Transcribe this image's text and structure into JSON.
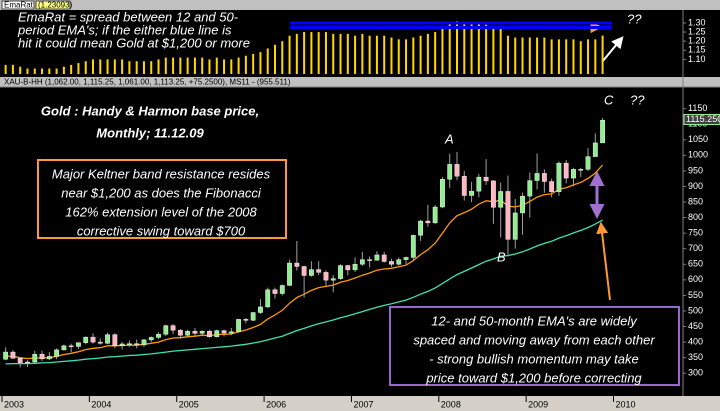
{
  "chart_data": [
    {
      "type": "bar",
      "title": "EmaRat",
      "subtitle": "(1.23093)",
      "color": "#ffd700",
      "values": [
        1.07,
        1.07,
        1.06,
        1.05,
        1.05,
        1.05,
        1.05,
        1.05,
        1.06,
        1.07,
        1.08,
        1.09,
        1.1,
        1.1,
        1.1,
        1.1,
        1.1,
        1.09,
        1.09,
        1.09,
        1.09,
        1.1,
        1.11,
        1.11,
        1.11,
        1.11,
        1.11,
        1.11,
        1.1,
        1.11,
        1.1,
        1.1,
        1.11,
        1.12,
        1.13,
        1.14,
        1.16,
        1.18,
        1.2,
        1.23,
        1.24,
        1.25,
        1.25,
        1.25,
        1.25,
        1.24,
        1.24,
        1.24,
        1.23,
        1.24,
        1.23,
        1.23,
        1.23,
        1.22,
        1.21,
        1.21,
        1.22,
        1.23,
        1.24,
        1.25,
        1.28,
        1.3,
        1.31,
        1.3,
        1.3,
        1.3,
        1.29,
        1.28,
        1.27,
        1.23,
        1.22,
        1.22,
        1.22,
        1.22,
        1.22,
        1.21,
        1.21,
        1.21,
        1.21,
        1.2,
        1.21,
        1.21,
        1.23093,
        null,
        null
      ],
      "ylim": [
        1.02,
        1.36
      ],
      "yticks": [
        {
          "value": 1.1,
          "label": "1.10"
        },
        {
          "value": 1.15,
          "label": "1.15"
        },
        {
          "value": 1.2,
          "label": "1.20"
        },
        {
          "value": 1.25,
          "label": "1.25"
        },
        {
          "value": 1.3,
          "label": "1.30"
        }
      ],
      "reference_lines": [
        {
          "value": 1.3,
          "color": "#0000ff"
        },
        {
          "value": 1.275,
          "color": "#0000ff"
        }
      ],
      "annotations": [
        {
          "lines": [
            "EmaRat = spread between 12 and 50-",
            "period EMA's; if the either blue line is",
            "hit it could mean Gold at $1,200 or more"
          ]
        },
        {
          "lines": [
            "??"
          ]
        }
      ]
    },
    {
      "type": "candlestick",
      "title": "XAU-B-HH (1,062.00, 1,115.25, 1,061.00, 1,113.25, +75.2500), MS11 - (955.511)",
      "categories": [
        "2003",
        null,
        null,
        null,
        null,
        null,
        null,
        null,
        null,
        null,
        null,
        null,
        "2004",
        null,
        null,
        null,
        null,
        null,
        null,
        null,
        null,
        null,
        null,
        null,
        "2005",
        null,
        null,
        null,
        null,
        null,
        null,
        null,
        null,
        null,
        null,
        null,
        "2006",
        null,
        null,
        null,
        null,
        null,
        null,
        null,
        null,
        null,
        null,
        null,
        "2007",
        null,
        null,
        null,
        null,
        null,
        null,
        null,
        null,
        null,
        null,
        null,
        "2008",
        null,
        null,
        null,
        null,
        null,
        null,
        null,
        null,
        null,
        null,
        null,
        "2009",
        null,
        null,
        null,
        null,
        null,
        null,
        null,
        null,
        null,
        null,
        null,
        "2010"
      ],
      "open": [
        345,
        368,
        348,
        334,
        336,
        361,
        346,
        354,
        375,
        388,
        386,
        398,
        416,
        400,
        396,
        424,
        388,
        394,
        395,
        391,
        407,
        415,
        425,
        453,
        438,
        422,
        435,
        428,
        435,
        417,
        437,
        429,
        433,
        473,
        470,
        495,
        513,
        568,
        556,
        582,
        654,
        643,
        614,
        633,
        624,
        599,
        604,
        646,
        632,
        650,
        665,
        663,
        680,
        659,
        650,
        665,
        672,
        743,
        789,
        783,
        834,
        923,
        971,
        933,
        871,
        885,
        930,
        918,
        833,
        884,
        730,
        815,
        869,
        919,
        942,
        916,
        883,
        975,
        927,
        955,
        955,
        996,
        1040,
        null,
        null
      ],
      "high": [
        383,
        374,
        352,
        342,
        372,
        372,
        368,
        380,
        392,
        395,
        400,
        418,
        428,
        412,
        430,
        428,
        400,
        405,
        408,
        410,
        418,
        432,
        456,
        458,
        442,
        440,
        445,
        438,
        440,
        440,
        440,
        445,
        475,
        478,
        497,
        538,
        575,
        575,
        585,
        665,
        725,
        645,
        660,
        660,
        630,
        615,
        650,
        648,
        672,
        690,
        675,
        692,
        690,
        668,
        672,
        675,
        745,
        792,
        841,
        840,
        930,
        1005,
        1011,
        950,
        915,
        940,
        988,
        920,
        912,
        935,
        860,
        880,
        945,
        1006,
        955,
        925,
        980,
        985,
        960,
        960,
        1023,
        1071,
        1120,
        null,
        null
      ],
      "low": [
        342,
        346,
        319,
        320,
        334,
        339,
        342,
        345,
        372,
        368,
        378,
        393,
        395,
        392,
        393,
        380,
        376,
        385,
        380,
        385,
        400,
        410,
        420,
        426,
        411,
        415,
        420,
        422,
        414,
        415,
        418,
        422,
        430,
        460,
        467,
        490,
        510,
        540,
        550,
        580,
        630,
        543,
        610,
        615,
        580,
        560,
        600,
        615,
        625,
        645,
        640,
        662,
        655,
        642,
        646,
        650,
        660,
        725,
        770,
        780,
        830,
        895,
        920,
        855,
        850,
        865,
        905,
        780,
        736,
        681,
        700,
        745,
        800,
        890,
        880,
        865,
        870,
        910,
        900,
        930,
        950,
        998,
        1040,
        null,
        null
      ],
      "close": [
        368,
        348,
        334,
        336,
        361,
        346,
        354,
        375,
        388,
        386,
        398,
        416,
        400,
        396,
        424,
        388,
        394,
        395,
        391,
        407,
        415,
        425,
        453,
        438,
        422,
        435,
        428,
        435,
        417,
        437,
        429,
        433,
        473,
        470,
        495,
        513,
        568,
        556,
        582,
        654,
        643,
        614,
        633,
        624,
        599,
        604,
        646,
        632,
        650,
        665,
        663,
        680,
        659,
        650,
        665,
        672,
        743,
        789,
        783,
        834,
        923,
        971,
        933,
        871,
        885,
        930,
        918,
        833,
        884,
        730,
        815,
        869,
        919,
        942,
        916,
        883,
        975,
        927,
        955,
        955,
        996,
        1040,
        1113,
        null,
        null
      ],
      "up_color": "#90ee90",
      "down_color": "#ffb6c1",
      "wick_color": "#a0a0a0",
      "overlays": [
        {
          "color": "#ff9900",
          "values": [
            355,
            354,
            350,
            347,
            349,
            349,
            350,
            354,
            360,
            364,
            369,
            376,
            380,
            382,
            388,
            388,
            389,
            390,
            390,
            393,
            396,
            400,
            408,
            413,
            414,
            417,
            419,
            422,
            421,
            424,
            425,
            426,
            433,
            439,
            447,
            457,
            474,
            487,
            502,
            525,
            543,
            554,
            566,
            575,
            579,
            583,
            592,
            598,
            606,
            615,
            622,
            631,
            635,
            637,
            642,
            647,
            662,
            681,
            697,
            718,
            750,
            783,
            806,
            816,
            827,
            843,
            854,
            851,
            856,
            837,
            834,
            840,
            852,
            866,
            874,
            876,
            891,
            896,
            905,
            913,
            926,
            943,
            969,
            null,
            null
          ]
        },
        {
          "color": "#40e0b0",
          "values": [
            330,
            331,
            331,
            331,
            332,
            333,
            334,
            336,
            338,
            340,
            342,
            345,
            347,
            349,
            352,
            353,
            355,
            357,
            358,
            360,
            362,
            365,
            368,
            371,
            373,
            375,
            377,
            379,
            381,
            383,
            385,
            387,
            390,
            393,
            397,
            401,
            407,
            413,
            419,
            428,
            437,
            444,
            452,
            459,
            465,
            471,
            478,
            484,
            491,
            498,
            505,
            512,
            518,
            523,
            529,
            535,
            544,
            554,
            563,
            574,
            588,
            603,
            617,
            627,
            638,
            649,
            660,
            667,
            676,
            678,
            683,
            690,
            699,
            709,
            717,
            724,
            734,
            742,
            751,
            759,
            768,
            779,
            792,
            null,
            null
          ]
        }
      ],
      "ylim": [
        230,
        1210
      ],
      "yticks": [
        300,
        350,
        400,
        450,
        500,
        550,
        600,
        650,
        700,
        750,
        800,
        850,
        900,
        950,
        1000,
        1050,
        1100,
        1150
      ],
      "last_price": {
        "value": 1115.25,
        "label": "1115.250"
      },
      "grid": false,
      "annotations": [
        {
          "lines": [
            "Gold : Handy & Harmon base price,",
            "Monthly; 11.12.09"
          ]
        },
        {
          "lines": [
            "Major Keltner band resistance resides",
            "near $1,200 as does the Fibonacci",
            "162% extension level of the 2008",
            "corrective swing toward $700"
          ],
          "border": "#ff9933"
        },
        {
          "lines": [
            "12- and 50-month EMA's are widely",
            "spaced and moving away from each other",
            "- strong bullish momentum may take",
            "price toward $1,200 before correcting"
          ],
          "border": "#9966cc"
        },
        {
          "lines": [
            "A"
          ]
        },
        {
          "lines": [
            "B"
          ]
        },
        {
          "lines": [
            "C"
          ]
        },
        {
          "lines": [
            "??"
          ]
        }
      ]
    }
  ]
}
